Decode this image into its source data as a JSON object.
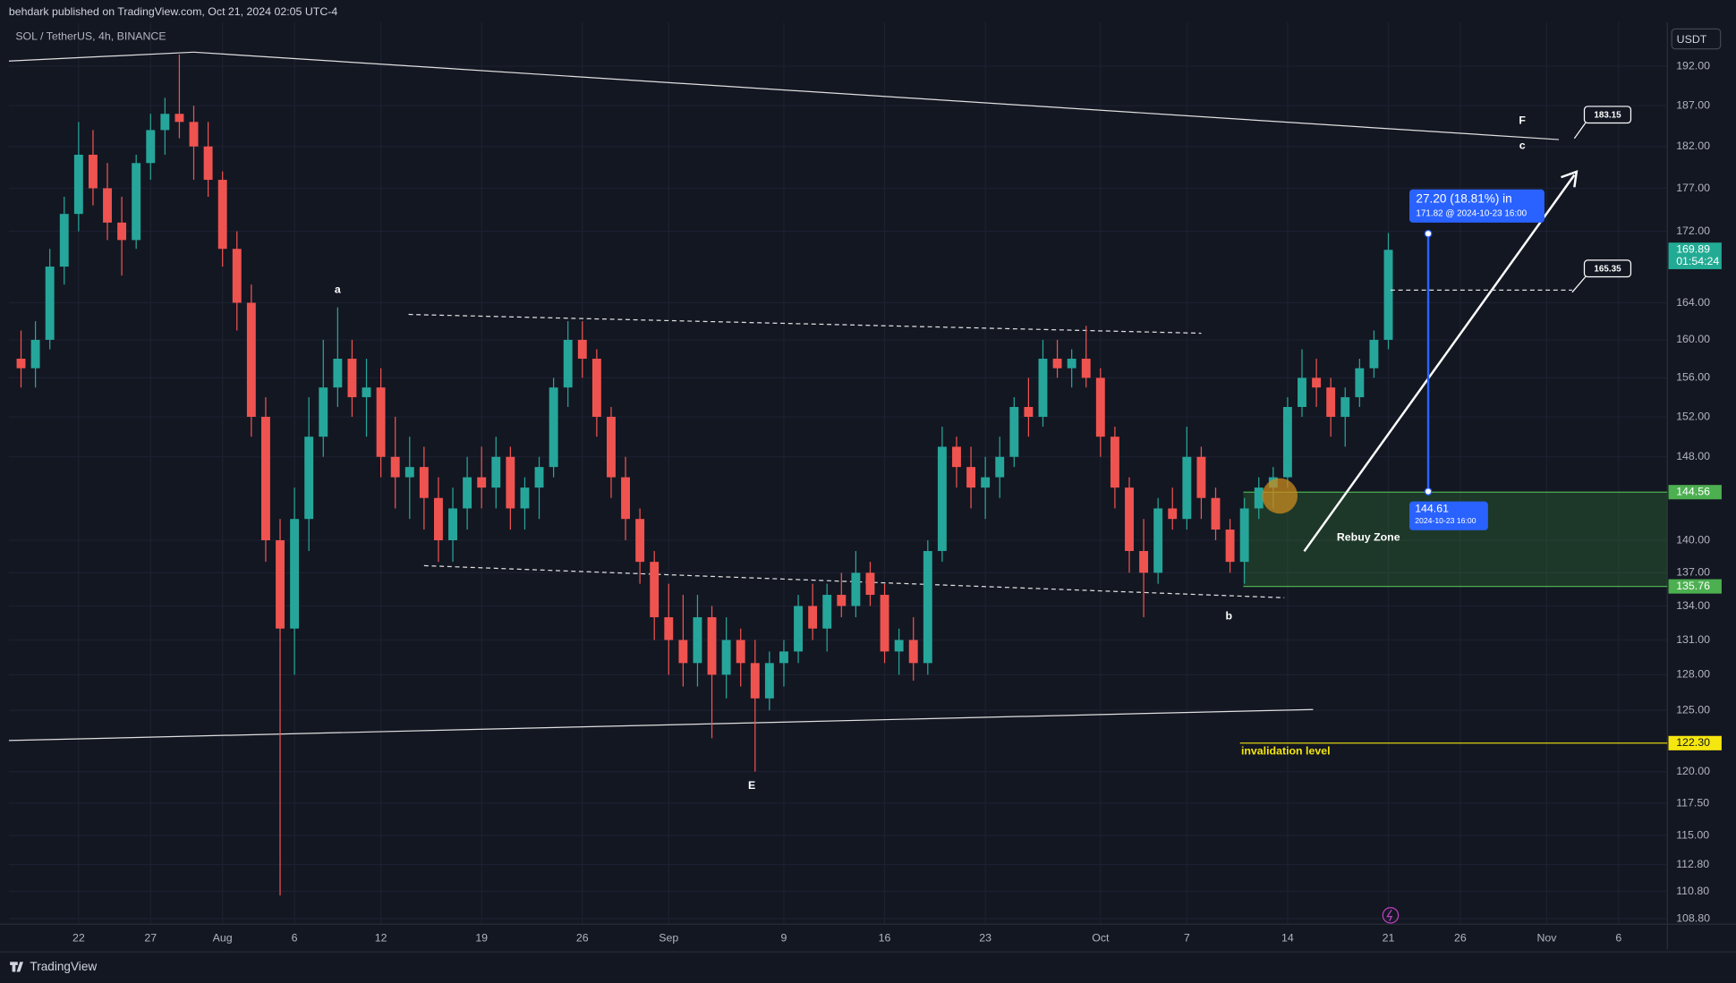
{
  "header": {
    "published": "behdark published on TradingView.com, Oct 21, 2024 02:05 UTC-4",
    "brand": "TradingView"
  },
  "chart_data": {
    "type": "candlestick",
    "title": "SOL / TetherUS, 4h, BINANCE",
    "currency": "USDT",
    "log_scale": true,
    "grid": true,
    "up_color": "#26a69a",
    "down_color": "#ef5350",
    "xlim": [
      "2024-07-17",
      "2024-11-10"
    ],
    "xticks": [
      {
        "value": "2024-07-22",
        "label": "22"
      },
      {
        "value": "2024-07-27",
        "label": "27"
      },
      {
        "value": "2024-08-01",
        "label": "Aug"
      },
      {
        "value": "2024-08-06",
        "label": "6"
      },
      {
        "value": "2024-08-12",
        "label": "12"
      },
      {
        "value": "2024-08-19",
        "label": "19"
      },
      {
        "value": "2024-08-26",
        "label": "26"
      },
      {
        "value": "2024-09-01",
        "label": "Sep"
      },
      {
        "value": "2024-09-09",
        "label": "9"
      },
      {
        "value": "2024-09-16",
        "label": "16"
      },
      {
        "value": "2024-09-23",
        "label": "23"
      },
      {
        "value": "2024-10-01",
        "label": "Oct"
      },
      {
        "value": "2024-10-07",
        "label": "7"
      },
      {
        "value": "2024-10-14",
        "label": "14"
      },
      {
        "value": "2024-10-21",
        "label": "21"
      },
      {
        "value": "2024-10-26",
        "label": "26"
      },
      {
        "value": "2024-11-01",
        "label": "Nov"
      },
      {
        "value": "2024-11-06",
        "label": "6"
      }
    ],
    "ylim": [
      108.4,
      197.7
    ],
    "yticks": [
      {
        "value": 192,
        "label": "192.00"
      },
      {
        "value": 187,
        "label": "187.00"
      },
      {
        "value": 182,
        "label": "182.00"
      },
      {
        "value": 177,
        "label": "177.00"
      },
      {
        "value": 172,
        "label": "172.00"
      },
      {
        "value": 164,
        "label": "164.00"
      },
      {
        "value": 160,
        "label": "160.00"
      },
      {
        "value": 156,
        "label": "156.00"
      },
      {
        "value": 152,
        "label": "152.00"
      },
      {
        "value": 148,
        "label": "148.00"
      },
      {
        "value": 140,
        "label": "140.00"
      },
      {
        "value": 137,
        "label": "137.00"
      },
      {
        "value": 134,
        "label": "134.00"
      },
      {
        "value": 131,
        "label": "131.00"
      },
      {
        "value": 128,
        "label": "128.00"
      },
      {
        "value": 125,
        "label": "125.00"
      },
      {
        "value": 120,
        "label": "120.00"
      },
      {
        "value": 117.5,
        "label": "117.50"
      },
      {
        "value": 115,
        "label": "115.00"
      },
      {
        "value": 112.8,
        "label": "112.80"
      },
      {
        "value": 110.8,
        "label": "110.80"
      },
      {
        "value": 108.8,
        "label": "108.80"
      }
    ],
    "x": [
      "2024-07-18",
      "2024-07-19",
      "2024-07-20",
      "2024-07-21",
      "2024-07-22",
      "2024-07-23",
      "2024-07-24",
      "2024-07-25",
      "2024-07-26",
      "2024-07-27",
      "2024-07-28",
      "2024-07-29",
      "2024-07-30",
      "2024-07-31",
      "2024-08-01",
      "2024-08-02",
      "2024-08-03",
      "2024-08-04",
      "2024-08-05",
      "2024-08-06",
      "2024-08-07",
      "2024-08-08",
      "2024-08-09",
      "2024-08-10",
      "2024-08-11",
      "2024-08-12",
      "2024-08-13",
      "2024-08-14",
      "2024-08-15",
      "2024-08-16",
      "2024-08-17",
      "2024-08-18",
      "2024-08-19",
      "2024-08-20",
      "2024-08-21",
      "2024-08-22",
      "2024-08-23",
      "2024-08-24",
      "2024-08-25",
      "2024-08-26",
      "2024-08-27",
      "2024-08-28",
      "2024-08-29",
      "2024-08-30",
      "2024-08-31",
      "2024-09-01",
      "2024-09-02",
      "2024-09-03",
      "2024-09-04",
      "2024-09-05",
      "2024-09-06",
      "2024-09-07",
      "2024-09-08",
      "2024-09-09",
      "2024-09-10",
      "2024-09-11",
      "2024-09-12",
      "2024-09-13",
      "2024-09-14",
      "2024-09-15",
      "2024-09-16",
      "2024-09-17",
      "2024-09-18",
      "2024-09-19",
      "2024-09-20",
      "2024-09-21",
      "2024-09-22",
      "2024-09-23",
      "2024-09-24",
      "2024-09-25",
      "2024-09-26",
      "2024-09-27",
      "2024-09-28",
      "2024-09-29",
      "2024-09-30",
      "2024-10-01",
      "2024-10-02",
      "2024-10-03",
      "2024-10-04",
      "2024-10-05",
      "2024-10-06",
      "2024-10-07",
      "2024-10-08",
      "2024-10-09",
      "2024-10-10",
      "2024-10-11",
      "2024-10-12",
      "2024-10-13",
      "2024-10-14",
      "2024-10-15",
      "2024-10-16",
      "2024-10-17",
      "2024-10-18",
      "2024-10-19",
      "2024-10-20",
      "2024-10-21"
    ],
    "ohlc": [
      [
        158,
        161,
        155,
        157
      ],
      [
        157,
        162,
        155,
        160
      ],
      [
        160,
        170,
        159,
        168
      ],
      [
        168,
        176,
        166,
        174
      ],
      [
        174,
        185,
        172,
        181
      ],
      [
        181,
        184,
        175,
        177
      ],
      [
        177,
        180,
        171,
        173
      ],
      [
        173,
        176,
        167,
        171
      ],
      [
        171,
        181,
        170,
        180
      ],
      [
        180,
        186,
        178,
        184
      ],
      [
        184,
        188,
        181,
        186
      ],
      [
        186,
        193.5,
        183,
        185
      ],
      [
        185,
        187,
        178,
        182
      ],
      [
        182,
        185,
        176,
        178
      ],
      [
        178,
        179,
        168,
        170
      ],
      [
        170,
        172,
        161,
        164
      ],
      [
        164,
        166,
        150,
        152
      ],
      [
        152,
        154,
        138,
        140
      ],
      [
        140,
        142,
        110.5,
        132
      ],
      [
        132,
        145,
        128,
        142
      ],
      [
        142,
        154,
        139,
        150
      ],
      [
        150,
        160,
        148,
        155
      ],
      [
        155,
        163.5,
        153,
        158
      ],
      [
        158,
        160,
        152,
        154
      ],
      [
        154,
        158,
        150,
        155
      ],
      [
        155,
        157,
        146,
        148
      ],
      [
        148,
        152,
        143,
        146
      ],
      [
        146,
        150,
        142,
        147
      ],
      [
        147,
        149,
        141,
        144
      ],
      [
        144,
        146,
        138,
        140
      ],
      [
        140,
        145,
        138,
        143
      ],
      [
        143,
        148,
        141,
        146
      ],
      [
        146,
        149,
        143,
        145
      ],
      [
        145,
        150,
        143,
        148
      ],
      [
        148,
        149,
        141,
        143
      ],
      [
        143,
        146,
        141,
        145
      ],
      [
        145,
        148,
        142,
        147
      ],
      [
        147,
        156,
        146,
        155
      ],
      [
        155,
        162,
        153,
        160
      ],
      [
        160,
        162,
        156,
        158
      ],
      [
        158,
        159,
        150,
        152
      ],
      [
        152,
        153,
        144,
        146
      ],
      [
        146,
        148,
        140,
        142
      ],
      [
        142,
        143,
        136,
        138
      ],
      [
        138,
        139,
        131,
        133
      ],
      [
        133,
        136,
        128,
        131
      ],
      [
        131,
        135,
        127,
        129
      ],
      [
        129,
        135,
        127,
        133
      ],
      [
        133,
        134,
        122.7,
        128
      ],
      [
        128,
        133,
        126,
        131
      ],
      [
        131,
        132,
        127,
        129
      ],
      [
        129,
        131,
        120,
        126
      ],
      [
        126,
        130,
        125,
        129
      ],
      [
        129,
        131,
        127,
        130
      ],
      [
        130,
        135,
        129,
        134
      ],
      [
        134,
        136,
        131,
        132
      ],
      [
        132,
        136,
        130,
        135
      ],
      [
        135,
        137,
        133,
        134
      ],
      [
        134,
        139,
        133,
        137
      ],
      [
        137,
        138,
        134,
        135
      ],
      [
        135,
        136,
        129,
        130
      ],
      [
        130,
        132,
        128,
        131
      ],
      [
        131,
        133,
        127.5,
        129
      ],
      [
        129,
        140,
        128,
        139
      ],
      [
        139,
        151,
        138,
        149
      ],
      [
        149,
        150,
        145,
        147
      ],
      [
        147,
        149,
        143,
        145
      ],
      [
        145,
        148,
        142,
        146
      ],
      [
        146,
        150,
        144,
        148
      ],
      [
        148,
        154,
        147,
        153
      ],
      [
        153,
        156,
        150,
        152
      ],
      [
        152,
        160,
        151,
        158
      ],
      [
        158,
        160,
        156,
        157
      ],
      [
        157,
        159,
        155,
        158
      ],
      [
        158,
        161.5,
        155,
        156
      ],
      [
        156,
        157,
        148,
        150
      ],
      [
        150,
        151,
        143,
        145
      ],
      [
        145,
        146,
        137,
        139
      ],
      [
        139,
        142,
        133,
        137
      ],
      [
        137,
        144,
        136,
        143
      ],
      [
        143,
        145,
        141,
        142
      ],
      [
        142,
        151,
        141,
        148
      ],
      [
        148,
        149,
        142,
        144
      ],
      [
        144,
        145,
        140,
        141
      ],
      [
        141,
        142,
        137,
        138
      ],
      [
        138,
        144,
        136,
        143
      ],
      [
        143,
        146,
        142,
        145
      ],
      [
        145,
        147,
        143,
        146
      ],
      [
        146,
        154,
        145,
        153
      ],
      [
        153,
        159,
        152,
        156
      ],
      [
        156,
        158,
        153,
        155
      ],
      [
        155,
        156,
        150,
        152
      ],
      [
        152,
        155,
        149,
        154
      ],
      [
        154,
        158,
        153,
        157
      ],
      [
        157,
        161,
        156,
        160
      ],
      [
        160,
        171.8,
        159,
        169.89
      ]
    ],
    "levels": [
      {
        "value": 169.89,
        "label": "169.89",
        "sub": "01:54:24",
        "color": "#22ab94"
      },
      {
        "value": 144.56,
        "label": "144.56",
        "color": "#4caf50"
      },
      {
        "value": 135.76,
        "label": "135.76",
        "color": "#4caf50"
      },
      {
        "value": 122.3,
        "label": "122.30",
        "color": "#f5e60f"
      }
    ],
    "annotations": {
      "wave_a": "a",
      "wave_b": "b",
      "wave_c": "c",
      "wave_e": "E",
      "wave_f": "F",
      "zone": "Rebuy Zone",
      "invalidation": "invalidation level",
      "target_high": "183.15",
      "target_mid": "165.35",
      "measure_top": "27.20 (18.81%) in",
      "measure_top_sub": "171.82 @ 2024-10-23  16:00",
      "measure_bottom": "144.61",
      "measure_bottom_sub": "2024-10-23 16:00"
    }
  }
}
